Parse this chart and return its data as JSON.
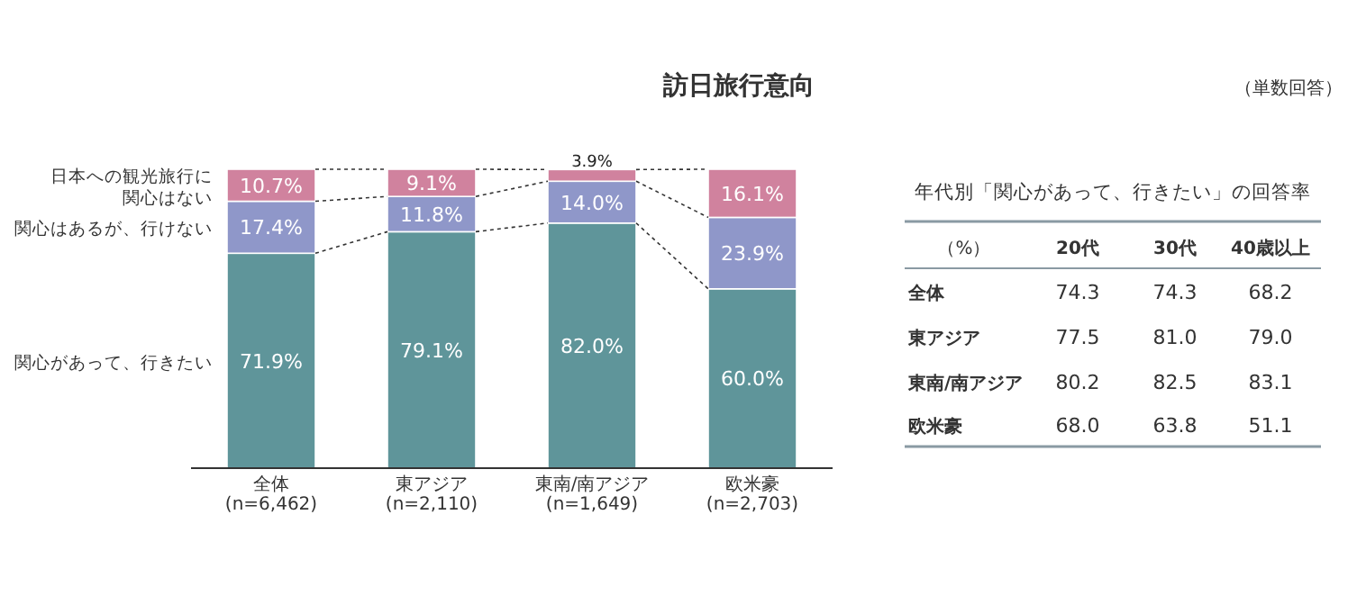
{
  "chart_data": [
    {
      "type": "bar",
      "title": "訪日旅行意向",
      "stacked": true,
      "data_labels": true,
      "ylim": [
        0,
        100
      ],
      "categories": [
        "全体\n(n=6,462)",
        "東アジア\n(n=2,110)",
        "東南/南アジア\n(n=1,649)",
        "欧米豪\n(n=2,703)"
      ],
      "series": [
        {
          "name": "関心があって、行きたい",
          "color": "#5f959a",
          "values": [
            71.9,
            79.1,
            82.0,
            60.0
          ],
          "value_labels": [
            "71.9%",
            "79.1%",
            "82.0%",
            "60.0%"
          ]
        },
        {
          "name": "関心はあるが、行けない",
          "color": "#8f97c9",
          "values": [
            17.4,
            11.8,
            14.0,
            23.9
          ],
          "value_labels": [
            "17.4%",
            "11.8%",
            "14.0%",
            "23.9%"
          ]
        },
        {
          "name": "日本への観光旅行に関心はない",
          "color": "#d0829e",
          "values": [
            10.7,
            9.1,
            3.9,
            16.1
          ],
          "value_labels": [
            "10.7%",
            "9.1%",
            "3.9%",
            "16.1%"
          ]
        }
      ],
      "annotations": [
        "（単数回答）"
      ]
    },
    {
      "type": "other",
      "title": "年代別「関心があって、行きたい」の回答率",
      "annotations": [
        "（%）",
        "20代",
        "30代",
        "40歳以上",
        "全体",
        "74.3",
        "74.3",
        "68.2",
        "東アジア",
        "77.5",
        "81.0",
        "79.0",
        "東南/南アジア",
        "80.2",
        "82.5",
        "83.1",
        "欧米豪",
        "68.0",
        "63.8",
        "51.1"
      ]
    }
  ]
}
